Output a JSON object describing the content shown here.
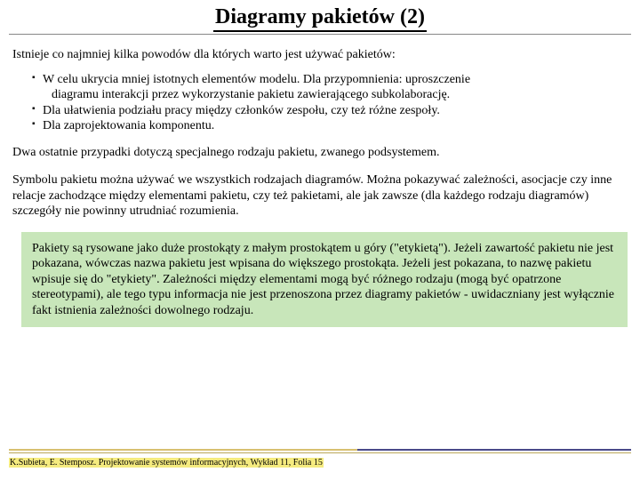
{
  "title": "Diagramy pakietów (2)",
  "intro": "Istnieje co najmniej kilka powodów dla których warto jest używać pakietów:",
  "bullets": [
    {
      "line1": "W celu ukrycia mniej istotnych elementów modelu. Dla przypomnienia: uproszczenie",
      "line2": "diagramu interakcji przez wykorzystanie pakietu zawierającego subkolaborację."
    },
    {
      "line1": "Dla ułatwienia podziału pracy między członków zespołu, czy też różne zespoły."
    },
    {
      "line1": "Dla zaprojektowania komponentu."
    }
  ],
  "para1": "Dwa ostatnie przypadki dotyczą specjalnego rodzaju pakietu, zwanego podsystemem.",
  "para2": "Symbolu pakietu można używać we wszystkich rodzajach diagramów. Można pokazywać zależności, asocjacje czy inne relacje zachodzące między elementami pakietu, czy też pakietami, ale jak zawsze (dla każdego rodzaju diagramów)  szczegóły nie powinny utrudniać rozumienia.",
  "greenbox": "Pakiety są rysowane jako duże prostokąty z  małym prostokątem u góry (\"etykietą\"). Jeżeli zawartość pakietu nie jest pokazana, wówczas nazwa pakietu jest wpisana do większego prostokąta. Jeżeli jest pokazana, to nazwę pakietu wpisuje się do \"etykiety\". Zależności  między  elementami mogą być różnego rodzaju (mogą być opatrzone stereotypami), ale tego typu informacja nie jest przenoszona przez diagramy pakietów - uwidaczniany jest wyłącznie fakt istnienia zależności dowolnego rodzaju.",
  "footer": "K.Subieta, E. Stemposz. Projektowanie systemów informacyjnych, Wykład 11, Folia 15",
  "colors": {
    "greenbox_bg": "#c8e6ba",
    "footer_highlight": "#f5eb7f"
  }
}
